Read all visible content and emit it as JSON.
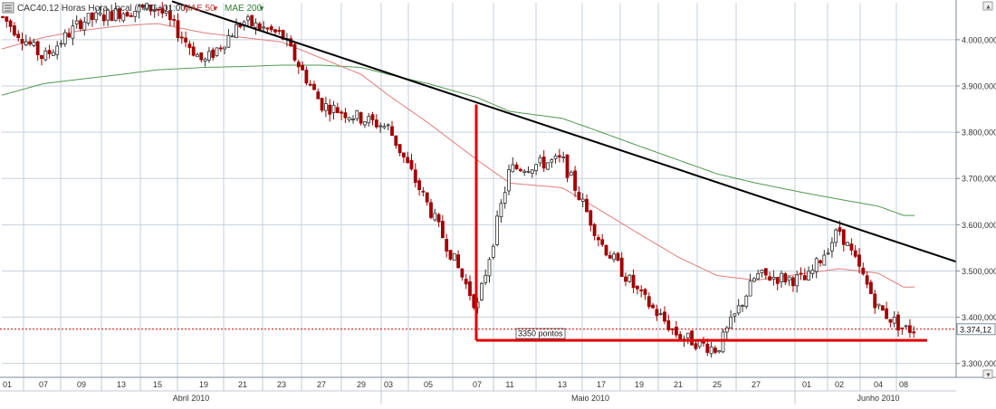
{
  "header": {
    "symbol_label": "CAC40.12 Horas Hora Local (TMG+01:00)",
    "ma50_label": "MAE 50",
    "ma200_label": "MAE 200"
  },
  "colors": {
    "candle_up": "#2e2e2e",
    "candle_down": "#a00000",
    "ma50": "#e07c7c",
    "ma200": "#4f9a4f",
    "trendline": "#000000",
    "support": "#e00000",
    "last_price": "#cc0000",
    "grid": "#c7d1dc"
  },
  "chart_data": {
    "type": "line",
    "title": "",
    "xlabel": "",
    "ylabel": "",
    "ylim": [
      3270,
      4080
    ],
    "grid": true,
    "y_ticks": [
      "3.300,000",
      "3.400,000",
      "3.500,000",
      "3.600,000",
      "3.700,000",
      "3.800,000",
      "3.900,000",
      "4.000,000"
    ],
    "y_tick_values": [
      3300,
      3400,
      3500,
      3600,
      3700,
      3800,
      3900,
      4000
    ],
    "x_day_labels": [
      "01",
      "07",
      "09",
      "13",
      "15",
      "19",
      "21",
      "23",
      "27",
      "29",
      "03",
      "05",
      "07",
      "11",
      "13",
      "17",
      "19",
      "21",
      "25",
      "27",
      "01",
      "02",
      "04",
      "08"
    ],
    "x_month_labels": [
      "Abril 2010",
      "Maio 2010",
      "Junho 2010"
    ],
    "last_price_label": "3.374,12",
    "last_price": 3374.12,
    "support_label": "3350 pontos",
    "support_level": 3350,
    "trendline": {
      "from": {
        "date": "16/04",
        "value": 4083
      },
      "to": {
        "date": "08/06",
        "value": 3520
      }
    },
    "drop_marker": {
      "date": "07/05",
      "top": 3860,
      "bottom": 3350
    },
    "series": [
      {
        "name": "CAC40.12",
        "x": [
          "01/04",
          "07/04",
          "09/04",
          "13/04",
          "15/04",
          "19/04",
          "21/04",
          "23/04",
          "27/04",
          "29/04",
          "03/05",
          "05/05",
          "07/05",
          "11/05",
          "13/05",
          "17/05",
          "19/05",
          "21/05",
          "25/05",
          "27/05",
          "01/06",
          "02/06",
          "04/06",
          "08/06"
        ],
        "values": [
          4050,
          3960,
          4040,
          4060,
          4070,
          3950,
          4040,
          4010,
          3860,
          3830,
          3810,
          3640,
          3420,
          3720,
          3740,
          3560,
          3450,
          3360,
          3330,
          3490,
          3480,
          3590,
          3420,
          3374
        ]
      },
      {
        "name": "MAE 50",
        "x": [
          "01/04",
          "07/04",
          "09/04",
          "13/04",
          "15/04",
          "19/04",
          "21/04",
          "23/04",
          "27/04",
          "29/04",
          "03/05",
          "05/05",
          "07/05",
          "11/05",
          "13/05",
          "17/05",
          "19/05",
          "21/05",
          "25/05",
          "27/05",
          "01/06",
          "02/06",
          "04/06",
          "08/06"
        ],
        "values": [
          3980,
          4005,
          4020,
          4030,
          4035,
          4015,
          4005,
          3995,
          3960,
          3925,
          3880,
          3820,
          3740,
          3690,
          3680,
          3630,
          3580,
          3530,
          3490,
          3480,
          3495,
          3505,
          3495,
          3465
        ]
      },
      {
        "name": "MAE 200",
        "x": [
          "01/04",
          "07/04",
          "09/04",
          "13/04",
          "15/04",
          "19/04",
          "21/04",
          "23/04",
          "27/04",
          "29/04",
          "03/05",
          "05/05",
          "07/05",
          "11/05",
          "13/05",
          "17/05",
          "19/05",
          "21/05",
          "25/05",
          "27/05",
          "01/06",
          "02/06",
          "04/06",
          "08/06"
        ],
        "values": [
          3880,
          3905,
          3915,
          3925,
          3935,
          3940,
          3942,
          3945,
          3945,
          3940,
          3925,
          3905,
          3875,
          3845,
          3830,
          3800,
          3770,
          3740,
          3710,
          3690,
          3668,
          3655,
          3640,
          3620
        ]
      }
    ]
  }
}
